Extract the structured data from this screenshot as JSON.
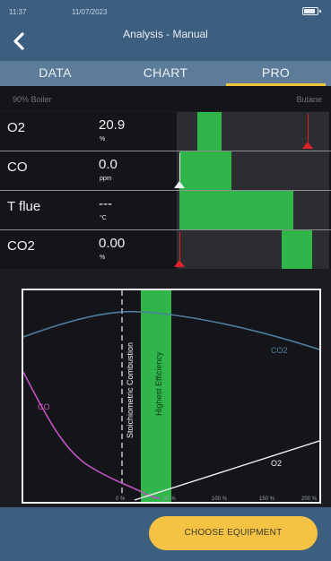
{
  "status": {
    "time": "11:37",
    "date": "11/07/2023"
  },
  "header": {
    "title": "Analysis - Manual"
  },
  "tabs": [
    {
      "label": "DATA"
    },
    {
      "label": "CHART"
    },
    {
      "label": "PRO",
      "active": true
    }
  ],
  "subheader": {
    "appliance": "90% Boiler",
    "fuel": "Butane"
  },
  "measurements": [
    {
      "name": "O2",
      "value": "20.9",
      "unit": "%"
    },
    {
      "name": "CO",
      "value": "0.0",
      "unit": "ppm"
    },
    {
      "name": "T flue",
      "value": "---",
      "unit": "°C"
    },
    {
      "name": "CO2",
      "value": "0.00",
      "unit": "%"
    }
  ],
  "chart": {
    "x_ticks": [
      "0 %",
      "50 %",
      "100 %",
      "150 %",
      "200 %"
    ],
    "band_label": "Highest Efficiency",
    "stoich_label": "Stoichiometric Combustion",
    "curves": [
      {
        "name": "CO2",
        "color": "#4f7fa0"
      },
      {
        "name": "CO",
        "color": "#c252c4"
      },
      {
        "name": "O2",
        "color": "#f2f2f2"
      }
    ]
  },
  "colors": {
    "accent": "#f3c43a",
    "green": "#2fb54a",
    "red": "#e0232a",
    "header": "#3c5f80"
  },
  "footer": {
    "button_label": "CHOOSE EQUIPMENT"
  }
}
